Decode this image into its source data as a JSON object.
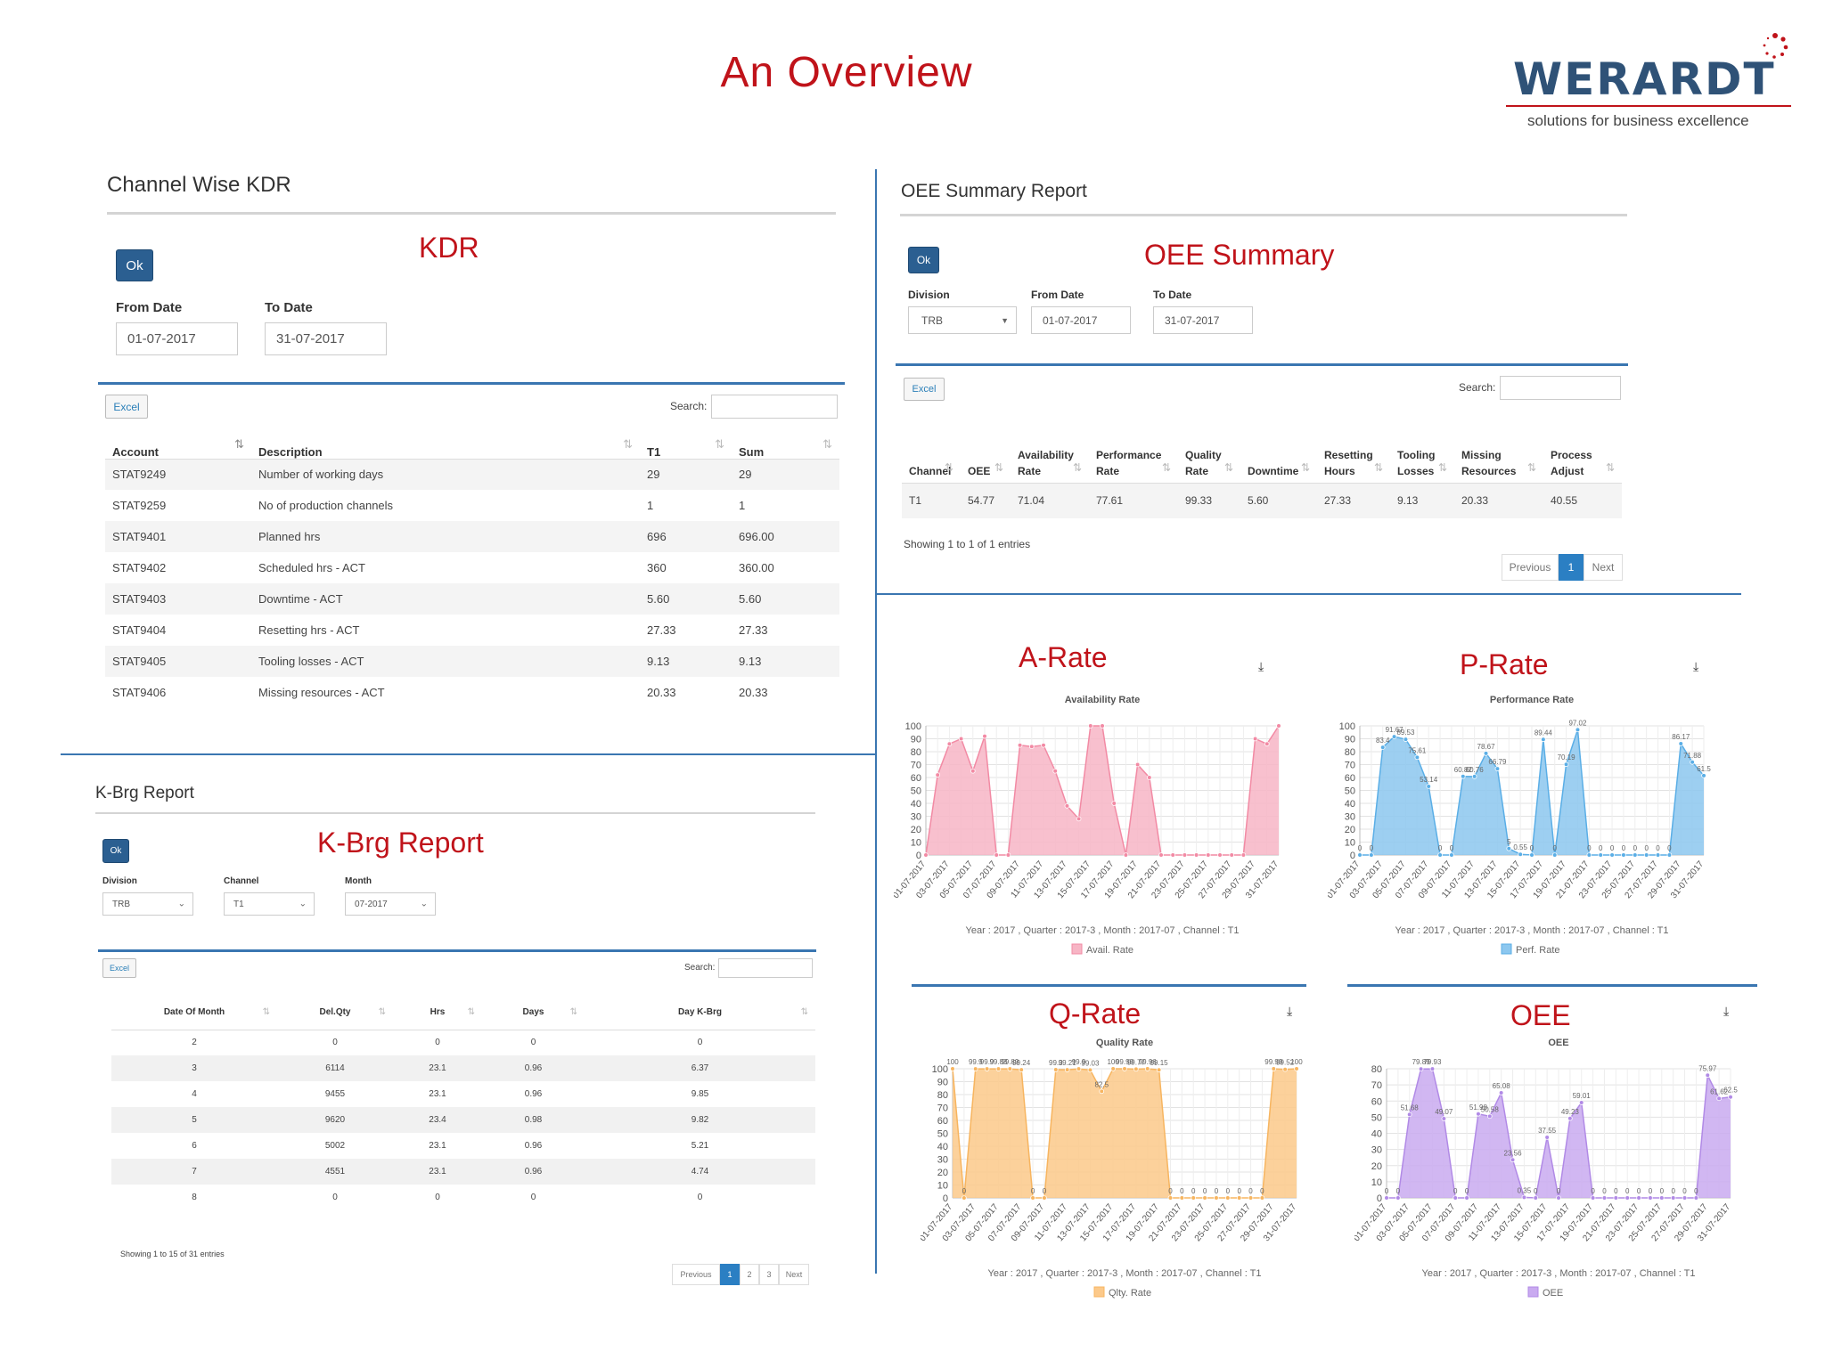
{
  "page": {
    "title": "An Overview",
    "logo": {
      "word": "WERARDT",
      "tagline": "solutions for business excellence"
    }
  },
  "kdr_panel": {
    "title": "Channel Wise KDR",
    "label": "KDR",
    "ok": "Ok",
    "from_label": "From Date",
    "from_value": "01-07-2017",
    "to_label": "To Date",
    "to_value": "31-07-2017",
    "excel": "Excel",
    "search_label": "Search:",
    "columns": [
      "Account",
      "Description",
      "T1",
      "Sum"
    ],
    "rows": [
      [
        "STAT9249",
        "Number of working days",
        "29",
        "29"
      ],
      [
        "STAT9259",
        "No of production channels",
        "1",
        "1"
      ],
      [
        "STAT9401",
        "Planned hrs",
        "696",
        "696.00"
      ],
      [
        "STAT9402",
        "Scheduled hrs - ACT",
        "360",
        "360.00"
      ],
      [
        "STAT9403",
        "Downtime - ACT",
        "5.60",
        "5.60"
      ],
      [
        "STAT9404",
        "Resetting hrs - ACT",
        "27.33",
        "27.33"
      ],
      [
        "STAT9405",
        "Tooling losses - ACT",
        "9.13",
        "9.13"
      ],
      [
        "STAT9406",
        "Missing resources - ACT",
        "20.33",
        "20.33"
      ]
    ]
  },
  "oee_panel": {
    "title": "OEE Summary Report",
    "label": "OEE Summary",
    "ok": "Ok",
    "division_label": "Division",
    "division_value": "TRB",
    "from_label": "From Date",
    "from_value": "01-07-2017",
    "to_label": "To Date",
    "to_value": "31-07-2017",
    "excel": "Excel",
    "search_label": "Search:",
    "columns": [
      [
        "Channel"
      ],
      [
        "OEE"
      ],
      [
        "Availability",
        "Rate"
      ],
      [
        "Performance",
        "Rate"
      ],
      [
        "Quality",
        "Rate"
      ],
      [
        "Downtime"
      ],
      [
        "Resetting",
        "Hours"
      ],
      [
        "Tooling",
        "Losses"
      ],
      [
        "Missing",
        "Resources"
      ],
      [
        "Process",
        "Adjust"
      ]
    ],
    "row": [
      "T1",
      "54.77",
      "71.04",
      "77.61",
      "99.33",
      "5.60",
      "27.33",
      "9.13",
      "20.33",
      "40.55"
    ],
    "info": "Showing 1 to 1 of 1 entries",
    "pager": {
      "prev": "Previous",
      "page": "1",
      "next": "Next"
    }
  },
  "kbrg_panel": {
    "title": "K-Brg Report",
    "label": "K-Brg Report",
    "ok": "Ok",
    "division_label": "Division",
    "division_value": "TRB",
    "channel_label": "Channel",
    "channel_value": "T1",
    "month_label": "Month",
    "month_value": "07-2017",
    "excel": "Excel",
    "search_label": "Search:",
    "columns": [
      "Date Of Month",
      "Del.Qty",
      "Hrs",
      "Days",
      "Day K-Brg"
    ],
    "rows": [
      [
        "2",
        "0",
        "0",
        "0",
        "0"
      ],
      [
        "3",
        "6114",
        "23.1",
        "0.96",
        "6.37"
      ],
      [
        "4",
        "9455",
        "23.1",
        "0.96",
        "9.85"
      ],
      [
        "5",
        "9620",
        "23.4",
        "0.98",
        "9.82"
      ],
      [
        "6",
        "5002",
        "23.1",
        "0.96",
        "5.21"
      ],
      [
        "7",
        "4551",
        "23.1",
        "0.96",
        "4.74"
      ],
      [
        "8",
        "0",
        "0",
        "0",
        "0"
      ]
    ],
    "info": "Showing 1 to 15 of 31 entries",
    "pager": {
      "prev": "Previous",
      "pages": [
        "1",
        "2",
        "3"
      ],
      "next": "Next"
    }
  },
  "chart_labels": {
    "a_rate": "A-Rate",
    "p_rate": "P-Rate",
    "q_rate": "Q-Rate",
    "oee": "OEE"
  },
  "chart_data": [
    {
      "type": "area",
      "title": "Availability Rate",
      "subtitle": "Year : 2017 , Quarter : 2017-3 , Month : 2017-07 , Channel : T1",
      "legend": "Avail. Rate",
      "color": "#f28aa4",
      "fill": "#f7b5c5",
      "ylim": [
        0,
        100
      ],
      "yticks": [
        0,
        10,
        20,
        30,
        40,
        50,
        60,
        70,
        80,
        90,
        100
      ],
      "x": [
        "01-07-2017",
        "02-07-2017",
        "03-07-2017",
        "04-07-2017",
        "05-07-2017",
        "06-07-2017",
        "07-07-2017",
        "08-07-2017",
        "09-07-2017",
        "10-07-2017",
        "11-07-2017",
        "12-07-2017",
        "13-07-2017",
        "14-07-2017",
        "15-07-2017",
        "16-07-2017",
        "17-07-2017",
        "18-07-2017",
        "19-07-2017",
        "20-07-2017",
        "21-07-2017",
        "22-07-2017",
        "23-07-2017",
        "24-07-2017",
        "25-07-2017",
        "26-07-2017",
        "27-07-2017",
        "28-07-2017",
        "29-07-2017",
        "30-07-2017",
        "31-07-2017"
      ],
      "xticks": [
        "01-07-2017",
        "03-07-2017",
        "05-07-2017",
        "07-07-2017",
        "09-07-2017",
        "11-07-2017",
        "13-07-2017",
        "15-07-2017",
        "17-07-2017",
        "19-07-2017",
        "21-07-2017",
        "23-07-2017",
        "25-07-2017",
        "27-07-2017",
        "29-07-2017",
        "31-07-2017"
      ],
      "values": [
        0,
        62,
        86,
        90,
        65,
        92,
        0,
        0,
        85,
        84,
        85,
        65,
        38,
        28,
        100,
        100,
        40,
        0,
        70,
        60,
        0,
        0,
        0,
        0,
        0,
        0,
        0,
        0,
        90,
        86,
        100
      ],
      "point_labels": []
    },
    {
      "type": "area",
      "title": "Performance Rate",
      "subtitle": "Year : 2017 , Quarter : 2017-3 , Month : 2017-07 , Channel : T1",
      "legend": "Perf. Rate",
      "color": "#5aaee6",
      "fill": "#8cc7ef",
      "ylim": [
        0,
        100
      ],
      "yticks": [
        0,
        10,
        20,
        30,
        40,
        50,
        60,
        70,
        80,
        90,
        100
      ],
      "x": [
        "01-07-2017",
        "02-07-2017",
        "03-07-2017",
        "04-07-2017",
        "05-07-2017",
        "06-07-2017",
        "07-07-2017",
        "08-07-2017",
        "09-07-2017",
        "10-07-2017",
        "11-07-2017",
        "12-07-2017",
        "13-07-2017",
        "14-07-2017",
        "15-07-2017",
        "16-07-2017",
        "17-07-2017",
        "18-07-2017",
        "19-07-2017",
        "20-07-2017",
        "21-07-2017",
        "22-07-2017",
        "23-07-2017",
        "24-07-2017",
        "25-07-2017",
        "26-07-2017",
        "27-07-2017",
        "28-07-2017",
        "29-07-2017",
        "30-07-2017",
        "31-07-2017"
      ],
      "xticks": [
        "01-07-2017",
        "03-07-2017",
        "05-07-2017",
        "07-07-2017",
        "09-07-2017",
        "11-07-2017",
        "13-07-2017",
        "15-07-2017",
        "17-07-2017",
        "19-07-2017",
        "21-07-2017",
        "23-07-2017",
        "25-07-2017",
        "27-07-2017",
        "29-07-2017",
        "31-07-2017"
      ],
      "values": [
        0,
        0,
        83.4,
        91.67,
        89.53,
        75.61,
        53.14,
        0,
        0,
        60.82,
        60.76,
        78.67,
        66.79,
        5,
        0.55,
        0,
        89.44,
        0,
        70.19,
        97.02,
        0,
        0,
        0,
        0,
        0,
        0,
        0,
        0,
        86.17,
        71.88,
        61.5
      ],
      "point_labels": [
        "0",
        "0",
        "83.4",
        "91.67",
        "89.53",
        "75.61",
        "53.14",
        "0",
        "0",
        "60.82",
        "60.76",
        "78.67",
        "66.79",
        "5",
        "0.55",
        "0",
        "89.44",
        "0",
        "70.19",
        "97.02",
        "0",
        "0",
        "0",
        "0",
        "0",
        "0",
        "0",
        "0",
        "86.17",
        "71.88",
        "61.5"
      ]
    },
    {
      "type": "area",
      "title": "Quality Rate",
      "subtitle": "Year : 2017 , Quarter : 2017-3 , Month : 2017-07 , Channel : T1",
      "legend": "Qlty. Rate",
      "color": "#f7b560",
      "fill": "#fcc98a",
      "ylim": [
        0,
        100
      ],
      "yticks": [
        0,
        10,
        20,
        30,
        40,
        50,
        60,
        70,
        80,
        90,
        100
      ],
      "x": [
        "01-07-2017",
        "02-07-2017",
        "03-07-2017",
        "04-07-2017",
        "05-07-2017",
        "06-07-2017",
        "07-07-2017",
        "08-07-2017",
        "09-07-2017",
        "10-07-2017",
        "11-07-2017",
        "12-07-2017",
        "13-07-2017",
        "14-07-2017",
        "15-07-2017",
        "16-07-2017",
        "17-07-2017",
        "18-07-2017",
        "19-07-2017",
        "20-07-2017",
        "21-07-2017",
        "22-07-2017",
        "23-07-2017",
        "24-07-2017",
        "25-07-2017",
        "26-07-2017",
        "27-07-2017",
        "28-07-2017",
        "29-07-2017",
        "30-07-2017",
        "31-07-2017"
      ],
      "xticks": [
        "01-07-2017",
        "03-07-2017",
        "05-07-2017",
        "07-07-2017",
        "09-07-2017",
        "11-07-2017",
        "13-07-2017",
        "15-07-2017",
        "17-07-2017",
        "19-07-2017",
        "21-07-2017",
        "23-07-2017",
        "25-07-2017",
        "27-07-2017",
        "29-07-2017",
        "31-07-2017"
      ],
      "values": [
        100,
        0,
        99.9,
        99.9,
        99.88,
        99.89,
        99.24,
        0,
        0,
        99.3,
        99.21,
        99.9,
        99.03,
        82.5,
        100,
        99.99,
        99.77,
        99.96,
        99.15,
        0,
        0,
        0,
        0,
        0,
        0,
        0,
        0,
        0,
        99.99,
        99.52,
        100
      ],
      "point_labels": [
        "100",
        "0",
        "99.9",
        "99.9",
        "99.88",
        "99.89",
        "99.24",
        "0",
        "0",
        "99.3",
        "99.21",
        "99.9",
        "99.03",
        "82.5",
        "100",
        "99.99",
        "99.77",
        "99.96",
        "99.15",
        "0",
        "0",
        "0",
        "0",
        "0",
        "0",
        "0",
        "0",
        "0",
        "99.99",
        "99.52",
        "100"
      ]
    },
    {
      "type": "area",
      "title": "OEE",
      "subtitle": "Year : 2017 , Quarter : 2017-3 , Month : 2017-07 , Channel : T1",
      "legend": "OEE",
      "color": "#b18ae6",
      "fill": "#c9aaf0",
      "ylim": [
        0,
        80
      ],
      "yticks": [
        0,
        10,
        20,
        30,
        40,
        50,
        60,
        70,
        80
      ],
      "x": [
        "01-07-2017",
        "02-07-2017",
        "03-07-2017",
        "04-07-2017",
        "05-07-2017",
        "06-07-2017",
        "07-07-2017",
        "08-07-2017",
        "09-07-2017",
        "10-07-2017",
        "11-07-2017",
        "12-07-2017",
        "13-07-2017",
        "14-07-2017",
        "15-07-2017",
        "16-07-2017",
        "17-07-2017",
        "18-07-2017",
        "19-07-2017",
        "20-07-2017",
        "21-07-2017",
        "22-07-2017",
        "23-07-2017",
        "24-07-2017",
        "25-07-2017",
        "26-07-2017",
        "27-07-2017",
        "28-07-2017",
        "29-07-2017",
        "30-07-2017",
        "31-07-2017"
      ],
      "xticks": [
        "01-07-2017",
        "03-07-2017",
        "05-07-2017",
        "07-07-2017",
        "09-07-2017",
        "11-07-2017",
        "13-07-2017",
        "15-07-2017",
        "17-07-2017",
        "19-07-2017",
        "21-07-2017",
        "23-07-2017",
        "25-07-2017",
        "27-07-2017",
        "29-07-2017",
        "31-07-2017"
      ],
      "values": [
        0,
        0,
        51.68,
        79.89,
        79.93,
        49.07,
        0,
        0,
        51.98,
        50.58,
        65.08,
        23.56,
        0.35,
        0,
        37.55,
        0,
        49.23,
        59.01,
        0,
        0,
        0,
        0,
        0,
        0,
        0,
        0,
        0,
        0,
        75.97,
        61.62,
        62.5
      ],
      "point_labels": [
        "0",
        "0",
        "51.68",
        "79.89",
        "79.93",
        "49.07",
        "0",
        "0",
        "51.98",
        "50.58",
        "65.08",
        "23.56",
        "0.35",
        "0",
        "37.55",
        "0",
        "49.23",
        "59.01",
        "0",
        "0",
        "0",
        "0",
        "0",
        "0",
        "0",
        "0",
        "0",
        "0",
        "75.97",
        "61.62",
        "62.5"
      ]
    }
  ]
}
